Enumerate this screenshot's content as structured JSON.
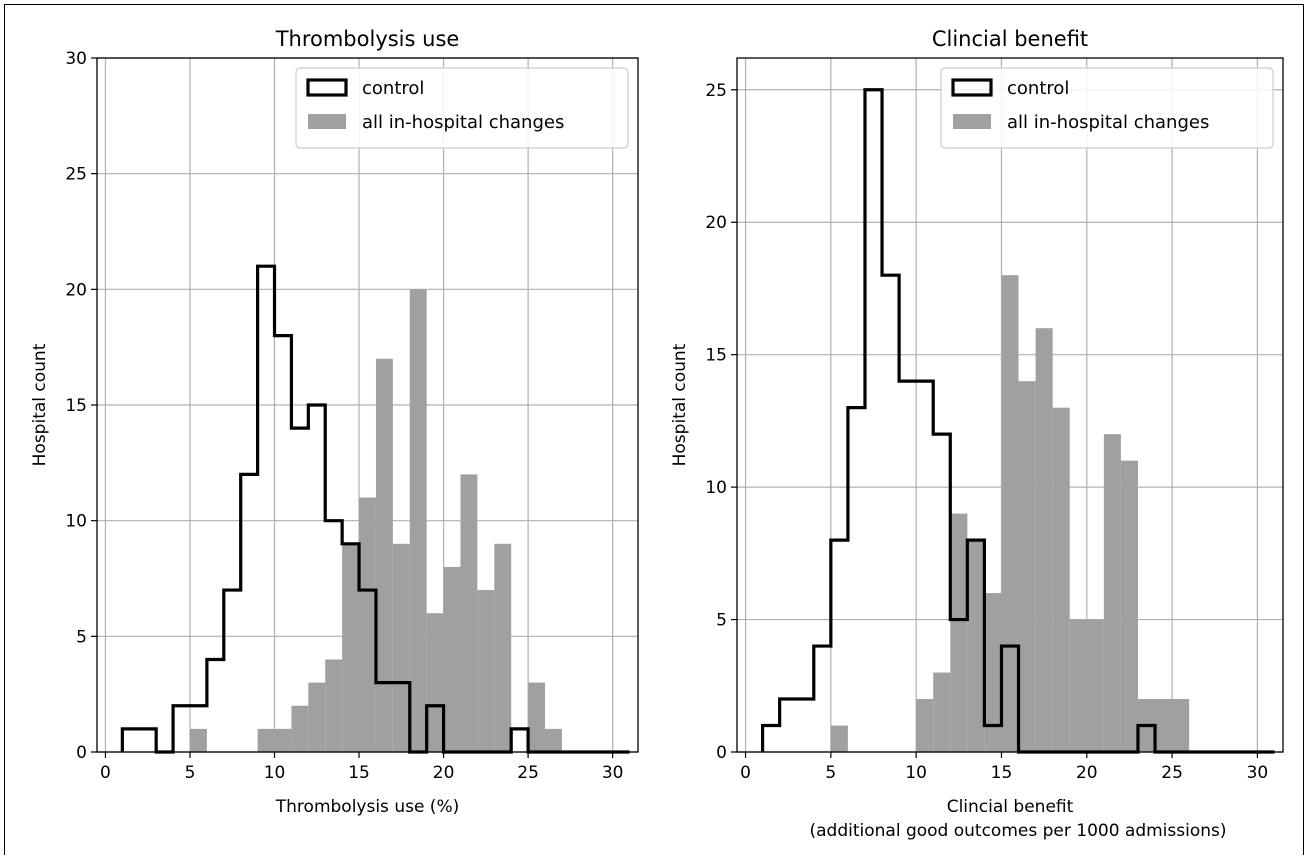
{
  "chart_data": [
    {
      "type": "histogram",
      "title": "Thrombolysis use",
      "xlabel": "Thrombolysis use (%)",
      "xlabel_line2": "",
      "ylabel": "Hospital count",
      "xlim": [
        -0.5,
        31.5
      ],
      "ylim": [
        0,
        30
      ],
      "xticks": [
        0,
        5,
        10,
        15,
        20,
        25,
        30
      ],
      "yticks": [
        0,
        5,
        10,
        15,
        20,
        25,
        30
      ],
      "grid": true,
      "legend_position": "upper right",
      "legend": [
        "control",
        "all in-hospital changes"
      ],
      "series": [
        {
          "name": "control",
          "style": "step",
          "color": "#000000",
          "bin_edges": [
            1,
            2,
            3,
            4,
            5,
            6,
            7,
            8,
            9,
            10,
            11,
            12,
            13,
            14,
            15,
            16,
            17,
            18,
            19,
            20,
            21,
            22,
            23,
            24,
            25,
            26,
            27,
            28,
            29,
            30,
            31
          ],
          "counts": [
            1,
            1,
            0,
            2,
            2,
            4,
            7,
            12,
            21,
            18,
            14,
            15,
            10,
            9,
            7,
            3,
            3,
            0,
            2,
            0,
            0,
            0,
            0,
            1,
            0,
            0,
            0,
            0,
            0,
            0
          ]
        },
        {
          "name": "all in-hospital changes",
          "style": "filled",
          "color": "#a0a0a0",
          "bin_edges": [
            5,
            6,
            7,
            8,
            9,
            10,
            11,
            12,
            13,
            14,
            15,
            16,
            17,
            18,
            19,
            20,
            21,
            22,
            23,
            24,
            25,
            26,
            27
          ],
          "counts": [
            1,
            0,
            0,
            0,
            1,
            1,
            2,
            3,
            4,
            9,
            11,
            17,
            9,
            20,
            6,
            8,
            12,
            7,
            9,
            0,
            3,
            1
          ]
        }
      ]
    },
    {
      "type": "histogram",
      "title": "Clincial benefit",
      "xlabel": "Clincial benefit",
      "xlabel_line2": "(additional good outcomes per 1000 admissions)",
      "ylabel": "Hospital count",
      "xlim": [
        -0.5,
        31.5
      ],
      "ylim": [
        0,
        26.2
      ],
      "xticks": [
        0,
        5,
        10,
        15,
        20,
        25,
        30
      ],
      "yticks": [
        0,
        5,
        10,
        15,
        20,
        25
      ],
      "grid": true,
      "legend_position": "upper right",
      "legend": [
        "control",
        "all in-hospital changes"
      ],
      "series": [
        {
          "name": "control",
          "style": "step",
          "color": "#000000",
          "bin_edges": [
            1,
            2,
            3,
            4,
            5,
            6,
            7,
            8,
            9,
            10,
            11,
            12,
            13,
            14,
            15,
            16,
            17,
            18,
            19,
            20,
            21,
            22,
            23,
            24,
            25,
            26,
            27,
            28,
            29,
            30,
            31
          ],
          "counts": [
            1,
            2,
            2,
            4,
            8,
            13,
            25,
            18,
            14,
            14,
            12,
            5,
            8,
            1,
            4,
            0,
            0,
            0,
            0,
            0,
            0,
            0,
            1,
            0,
            0,
            0,
            0,
            0,
            0,
            0
          ]
        },
        {
          "name": "all in-hospital changes",
          "style": "filled",
          "color": "#a0a0a0",
          "bin_edges": [
            5,
            6,
            7,
            8,
            9,
            10,
            11,
            12,
            13,
            14,
            15,
            16,
            17,
            18,
            19,
            20,
            21,
            22,
            23,
            24,
            25,
            26
          ],
          "counts": [
            1,
            0,
            0,
            0,
            0,
            2,
            3,
            9,
            8,
            6,
            18,
            14,
            16,
            13,
            5,
            5,
            12,
            11,
            2,
            2,
            2
          ]
        }
      ]
    }
  ]
}
